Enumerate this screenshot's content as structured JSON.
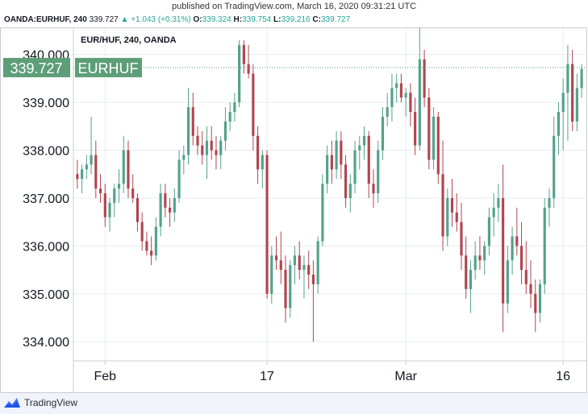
{
  "header": {
    "published": "published on TradingView.com, March 16, 2020 09:31:21 UTC",
    "symbol_line": {
      "symbol": "OANDA:EURHUF, 240",
      "last": "339.727",
      "change_arrow": "▲",
      "change": "+1.043 (+0.31%)",
      "o_label": "O:",
      "o_value": "339.324",
      "h_label": "H:",
      "h_value": "339.754",
      "l_label": "L:",
      "l_value": "339.216",
      "c_label": "C:",
      "c_value": "339.727"
    }
  },
  "chart_title": "EUR/HUF, 240, OANDA",
  "footer": {
    "brand": "TradingView",
    "logo_icon": "tradingview-logo-icon"
  },
  "colors": {
    "up": "#53a28a",
    "down": "#b1454f",
    "price_label": "#5d9e79",
    "grid": "#e9ecf1"
  },
  "chart_data": {
    "type": "candlestick",
    "title": "EUR/HUF, 240, OANDA",
    "ylim": [
      333.6,
      340.55
    ],
    "y_ticks": [
      "334.000",
      "335.000",
      "336.000",
      "337.000",
      "338.000",
      "339.000",
      "340.000"
    ],
    "y_tick_values": [
      334,
      335,
      336,
      337,
      338,
      339,
      340
    ],
    "x_ticks": [
      {
        "label": "Feb",
        "bar": 6
      },
      {
        "label": "17",
        "bar": 41
      },
      {
        "label": "Mar",
        "bar": 71
      },
      {
        "label": "16",
        "bar": 105
      }
    ],
    "last_price": {
      "value": 339.727,
      "label": "339.727",
      "series": "EURHUF"
    },
    "ohlc": [
      [
        337.5,
        337.8,
        337.2,
        337.4
      ],
      [
        337.4,
        337.7,
        337.1,
        337.6
      ],
      [
        337.6,
        337.9,
        337.4,
        337.7
      ],
      [
        337.7,
        338.7,
        337.5,
        337.9
      ],
      [
        337.9,
        338.2,
        337.0,
        337.2
      ],
      [
        337.2,
        337.5,
        336.9,
        337.1
      ],
      [
        337.1,
        337.3,
        336.4,
        336.6
      ],
      [
        336.6,
        337.0,
        336.3,
        336.9
      ],
      [
        336.9,
        337.3,
        336.6,
        337.2
      ],
      [
        337.2,
        337.6,
        336.9,
        337.3
      ],
      [
        337.3,
        338.3,
        337.1,
        338.0
      ],
      [
        338.0,
        338.2,
        337.0,
        337.2
      ],
      [
        337.2,
        337.5,
        336.9,
        337.0
      ],
      [
        337.0,
        337.1,
        336.3,
        336.5
      ],
      [
        336.5,
        336.7,
        335.9,
        336.1
      ],
      [
        336.1,
        336.3,
        335.8,
        335.9
      ],
      [
        335.9,
        336.2,
        335.6,
        335.8
      ],
      [
        335.8,
        336.6,
        335.7,
        336.4
      ],
      [
        336.4,
        337.3,
        336.2,
        337.1
      ],
      [
        337.1,
        337.3,
        336.6,
        336.8
      ],
      [
        336.8,
        337.0,
        336.4,
        336.7
      ],
      [
        336.7,
        337.2,
        336.5,
        337.0
      ],
      [
        337.0,
        338.0,
        336.9,
        337.8
      ],
      [
        337.8,
        338.1,
        337.5,
        337.9
      ],
      [
        337.9,
        339.3,
        337.7,
        338.9
      ],
      [
        338.9,
        339.2,
        338.1,
        338.3
      ],
      [
        338.3,
        338.5,
        337.9,
        338.1
      ],
      [
        338.1,
        338.4,
        337.7,
        337.9
      ],
      [
        337.9,
        338.5,
        337.4,
        338.2
      ],
      [
        338.2,
        338.5,
        337.8,
        338.0
      ],
      [
        338.0,
        338.3,
        337.6,
        337.9
      ],
      [
        337.9,
        338.3,
        337.6,
        338.2
      ],
      [
        338.2,
        338.9,
        338.0,
        338.6
      ],
      [
        338.6,
        339.0,
        338.4,
        338.8
      ],
      [
        338.8,
        339.2,
        338.6,
        339.0
      ],
      [
        339.0,
        340.3,
        338.9,
        340.2
      ],
      [
        340.2,
        340.3,
        339.6,
        339.8
      ],
      [
        339.8,
        340.2,
        339.5,
        339.6
      ],
      [
        339.6,
        339.8,
        338.0,
        338.3
      ],
      [
        338.3,
        338.5,
        337.3,
        337.6
      ],
      [
        337.6,
        338.0,
        337.2,
        337.9
      ],
      [
        337.9,
        338.0,
        334.9,
        335.0
      ],
      [
        335.0,
        336.0,
        334.8,
        335.8
      ],
      [
        335.8,
        336.2,
        335.5,
        335.7
      ],
      [
        335.7,
        336.3,
        335.2,
        335.5
      ],
      [
        335.5,
        335.8,
        334.4,
        334.7
      ],
      [
        334.7,
        335.7,
        334.5,
        335.6
      ],
      [
        335.6,
        336.0,
        335.2,
        335.8
      ],
      [
        335.8,
        336.1,
        335.3,
        335.5
      ],
      [
        335.5,
        335.8,
        334.9,
        335.6
      ],
      [
        335.6,
        335.9,
        335.1,
        335.4
      ],
      [
        335.4,
        335.7,
        334.0,
        335.2
      ],
      [
        335.2,
        336.2,
        335.0,
        336.1
      ],
      [
        336.1,
        337.5,
        336.0,
        337.3
      ],
      [
        337.3,
        338.1,
        337.1,
        337.9
      ],
      [
        337.9,
        338.2,
        337.3,
        337.6
      ],
      [
        337.6,
        338.4,
        337.4,
        338.2
      ],
      [
        338.2,
        338.4,
        337.4,
        337.7
      ],
      [
        337.7,
        337.9,
        336.8,
        337.0
      ],
      [
        337.0,
        337.5,
        336.7,
        337.3
      ],
      [
        337.3,
        338.2,
        337.1,
        338.0
      ],
      [
        338.0,
        338.3,
        337.6,
        338.1
      ],
      [
        338.1,
        338.5,
        337.8,
        338.3
      ],
      [
        338.3,
        338.4,
        337.0,
        337.3
      ],
      [
        337.3,
        337.6,
        336.8,
        337.1
      ],
      [
        337.1,
        338.2,
        336.9,
        338.0
      ],
      [
        338.0,
        338.9,
        337.8,
        338.7
      ],
      [
        338.7,
        339.2,
        338.5,
        338.9
      ],
      [
        338.9,
        339.6,
        338.6,
        339.3
      ],
      [
        339.3,
        339.6,
        339.0,
        339.4
      ],
      [
        339.4,
        339.6,
        339.0,
        339.1
      ],
      [
        339.1,
        339.3,
        338.7,
        339.2
      ],
      [
        339.2,
        339.4,
        338.5,
        338.8
      ],
      [
        338.8,
        339.1,
        337.9,
        338.1
      ],
      [
        338.1,
        340.6,
        338.0,
        339.9
      ],
      [
        339.9,
        340.1,
        338.9,
        339.1
      ],
      [
        339.1,
        339.3,
        337.6,
        337.8
      ],
      [
        337.8,
        338.9,
        337.6,
        338.7
      ],
      [
        338.7,
        338.8,
        337.3,
        337.5
      ],
      [
        337.5,
        338.2,
        335.9,
        336.2
      ],
      [
        336.2,
        337.2,
        336.0,
        337.0
      ],
      [
        337.0,
        337.4,
        336.4,
        336.7
      ],
      [
        336.7,
        337.1,
        336.3,
        336.5
      ],
      [
        336.5,
        336.9,
        335.5,
        335.8
      ],
      [
        335.8,
        336.2,
        334.9,
        335.1
      ],
      [
        335.1,
        335.7,
        334.6,
        335.5
      ],
      [
        335.5,
        336.1,
        335.3,
        335.8
      ],
      [
        335.8,
        336.2,
        335.5,
        335.7
      ],
      [
        335.7,
        336.1,
        335.4,
        336.0
      ],
      [
        336.0,
        336.8,
        335.8,
        336.6
      ],
      [
        336.6,
        337.1,
        336.2,
        336.8
      ],
      [
        336.8,
        337.3,
        336.5,
        337.0
      ],
      [
        337.0,
        337.7,
        334.2,
        334.8
      ],
      [
        334.8,
        336.0,
        334.6,
        335.7
      ],
      [
        335.7,
        336.4,
        335.4,
        336.2
      ],
      [
        336.2,
        336.8,
        335.8,
        336.0
      ],
      [
        336.0,
        336.5,
        335.2,
        335.5
      ],
      [
        335.5,
        336.1,
        335.0,
        335.2
      ],
      [
        335.2,
        335.7,
        334.7,
        335.0
      ],
      [
        335.0,
        335.3,
        334.2,
        334.6
      ],
      [
        334.6,
        335.3,
        334.4,
        335.2
      ],
      [
        335.2,
        337.0,
        335.0,
        336.8
      ],
      [
        336.8,
        337.2,
        336.4,
        337.0
      ],
      [
        337.0,
        338.7,
        336.8,
        338.3
      ],
      [
        338.3,
        339.0,
        337.9,
        338.8
      ],
      [
        338.8,
        339.5,
        338.0,
        339.2
      ],
      [
        339.2,
        340.2,
        338.2,
        339.8
      ],
      [
        339.8,
        340.1,
        338.4,
        338.6
      ],
      [
        338.6,
        339.6,
        338.4,
        339.3
      ],
      [
        339.3,
        339.8,
        339.1,
        339.7
      ]
    ]
  }
}
